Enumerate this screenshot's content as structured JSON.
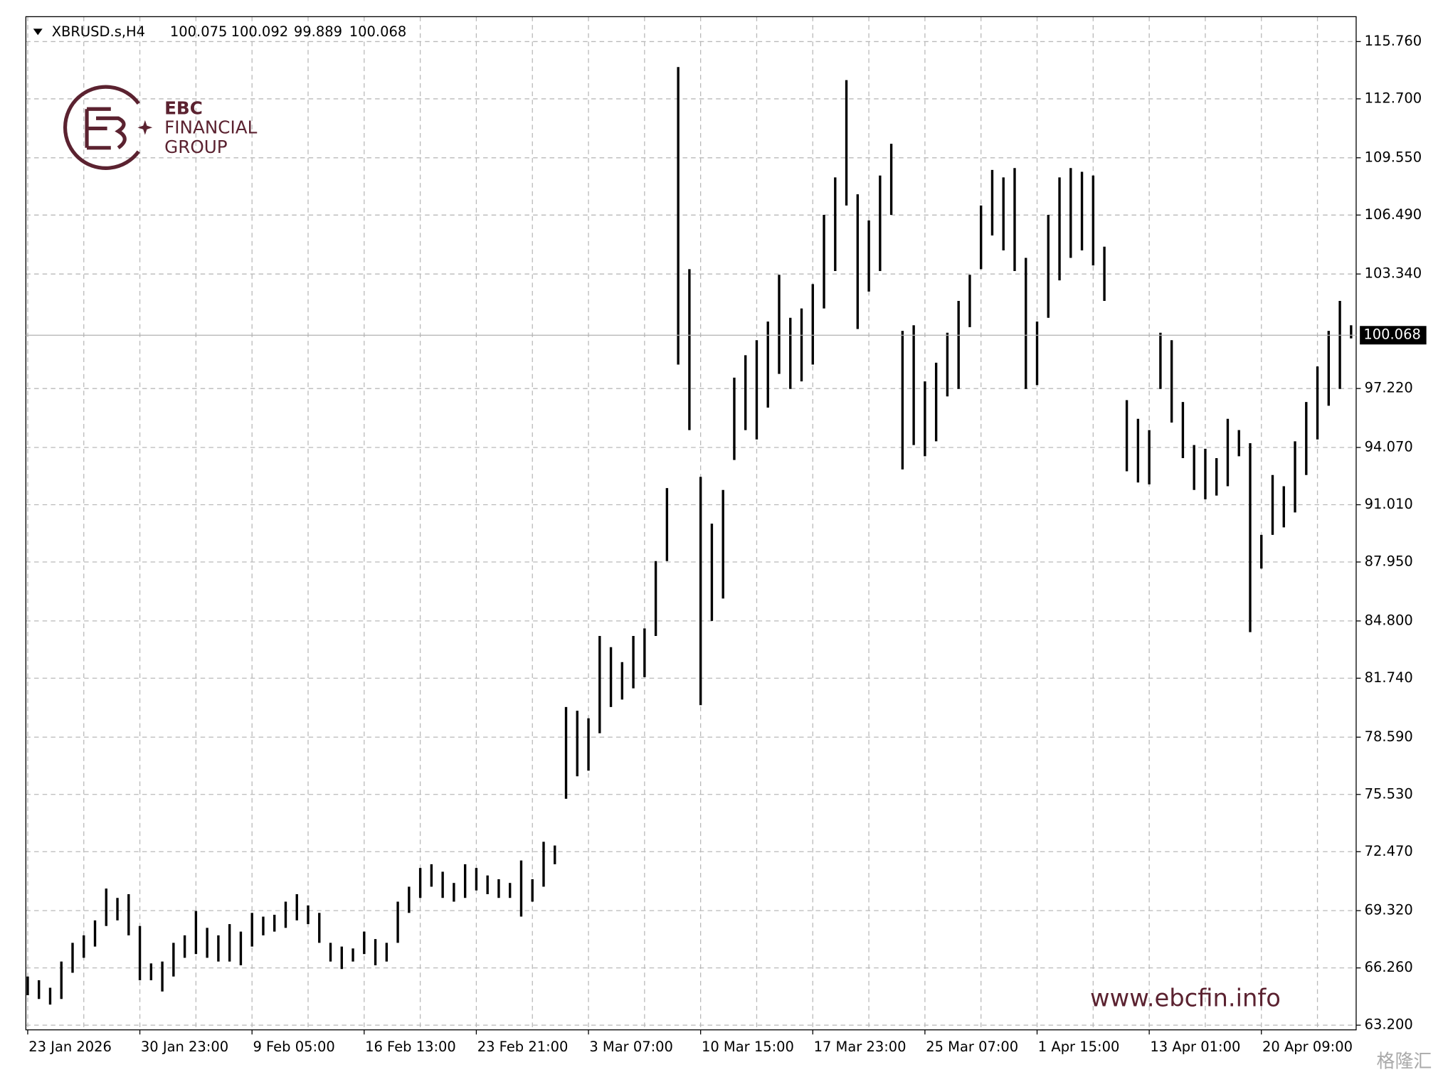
{
  "chart_data": {
    "type": "ohlc",
    "symbol": "XBRUSD.s,H4",
    "ohlc": [
      100.075,
      100.092,
      99.889,
      100.068
    ],
    "current_price": 100.068,
    "brand": [
      "EBC",
      "FINANCIAL",
      "GROUP"
    ],
    "watermark": "www.ebcfin.info",
    "source_mark": "格隆汇",
    "color": "#000000",
    "grid": true,
    "ylim": [
      62.95,
      117.09
    ],
    "yticks": [
      {
        "value": 63.2,
        "label": "63.200"
      },
      {
        "value": 66.26,
        "label": "66.260"
      },
      {
        "value": 69.32,
        "label": "69.320"
      },
      {
        "value": 72.47,
        "label": "72.470"
      },
      {
        "value": 75.53,
        "label": "75.530"
      },
      {
        "value": 78.59,
        "label": "78.590"
      },
      {
        "value": 81.74,
        "label": "81.740"
      },
      {
        "value": 84.8,
        "label": "84.800"
      },
      {
        "value": 87.95,
        "label": "87.950"
      },
      {
        "value": 91.01,
        "label": "91.010"
      },
      {
        "value": 94.07,
        "label": "94.070"
      },
      {
        "value": 97.22,
        "label": "97.220"
      },
      {
        "value": 103.34,
        "label": "103.340"
      },
      {
        "value": 106.49,
        "label": "106.490"
      },
      {
        "value": 109.55,
        "label": "109.550"
      },
      {
        "value": 112.7,
        "label": "112.700"
      },
      {
        "value": 115.76,
        "label": "115.760"
      }
    ],
    "categories": [
      "23 Jan 2026",
      null,
      null,
      null,
      null,
      null,
      null,
      null,
      null,
      null,
      "30 Jan 23:00",
      null,
      null,
      null,
      null,
      null,
      null,
      null,
      null,
      null,
      "9 Feb 05:00",
      null,
      null,
      null,
      null,
      null,
      null,
      null,
      null,
      null,
      "16 Feb 13:00",
      null,
      null,
      null,
      null,
      null,
      null,
      null,
      null,
      null,
      "23 Feb 21:00",
      null,
      null,
      null,
      null,
      null,
      null,
      null,
      null,
      null,
      "3 Mar 07:00",
      null,
      null,
      null,
      null,
      null,
      null,
      null,
      null,
      null,
      "10 Mar 15:00",
      null,
      null,
      null,
      null,
      null,
      null,
      null,
      null,
      null,
      "17 Mar 23:00",
      null,
      null,
      null,
      null,
      null,
      null,
      null,
      null,
      null,
      "25 Mar 07:00",
      null,
      null,
      null,
      null,
      null,
      null,
      null,
      null,
      null,
      "1 Apr 15:00",
      null,
      null,
      null,
      null,
      null,
      null,
      null,
      null,
      null,
      "13 Apr 01:00",
      null,
      null,
      null,
      null,
      null,
      null,
      null,
      null,
      null,
      "20 Apr 09:00",
      null,
      null,
      null,
      null,
      null,
      null,
      null,
      null
    ],
    "high": [
      65.8,
      65.6,
      65.2,
      66.6,
      67.6,
      68.0,
      68.8,
      70.5,
      70.0,
      70.2,
      68.5,
      66.5,
      66.6,
      67.6,
      68.0,
      69.3,
      68.4,
      68.0,
      68.6,
      68.2,
      69.2,
      69.0,
      69.1,
      69.8,
      70.2,
      69.6,
      69.2,
      67.6,
      67.4,
      67.3,
      68.2,
      67.8,
      67.6,
      69.8,
      70.6,
      71.6,
      71.8,
      71.4,
      70.8,
      71.8,
      71.6,
      71.2,
      71.0,
      70.8,
      72.0,
      71.0,
      73.0,
      72.8,
      80.2,
      80.0,
      79.6,
      84.0,
      83.4,
      82.6,
      84.0,
      84.4,
      88.0,
      91.9,
      114.4,
      103.6,
      92.5,
      90.0,
      91.8,
      97.8,
      99.0,
      99.8,
      100.8,
      103.3,
      101.0,
      101.5,
      102.8,
      106.5,
      108.5,
      113.7,
      107.6,
      106.2,
      108.6,
      110.3,
      100.3,
      100.6,
      97.6,
      98.6,
      100.2,
      101.9,
      103.3,
      107.0,
      108.9,
      108.5,
      109.0,
      104.2,
      100.8,
      106.5,
      108.5,
      109.0,
      108.8,
      108.6,
      104.8,
      null,
      96.6,
      95.6,
      95.0,
      100.2,
      99.8,
      96.5,
      94.2,
      94.0,
      93.5,
      95.6,
      95.0,
      94.3,
      89.4,
      92.6,
      92.0,
      94.4,
      96.5,
      98.4,
      100.3,
      101.9,
      100.6
    ],
    "low": [
      64.8,
      64.6,
      64.3,
      64.6,
      66.0,
      66.8,
      67.4,
      68.5,
      68.8,
      68.0,
      65.6,
      65.6,
      65.0,
      65.8,
      66.8,
      67.0,
      66.8,
      66.6,
      66.6,
      66.4,
      67.4,
      68.0,
      68.2,
      68.4,
      68.8,
      68.6,
      67.6,
      66.6,
      66.2,
      66.6,
      67.0,
      66.4,
      66.6,
      67.6,
      69.2,
      70.0,
      70.6,
      70.0,
      69.8,
      70.0,
      70.4,
      70.2,
      70.0,
      70.0,
      69.0,
      69.8,
      70.6,
      71.8,
      75.3,
      76.5,
      76.8,
      78.8,
      80.2,
      80.6,
      81.2,
      81.8,
      84.0,
      88.0,
      98.5,
      95.0,
      80.3,
      84.8,
      86.0,
      93.4,
      95.0,
      94.5,
      96.2,
      98.0,
      97.2,
      97.6,
      98.5,
      101.5,
      103.5,
      107.0,
      100.4,
      102.4,
      103.5,
      106.5,
      92.9,
      94.2,
      93.6,
      94.4,
      96.8,
      97.2,
      100.5,
      103.6,
      105.4,
      104.6,
      103.5,
      97.2,
      97.4,
      101.0,
      103.0,
      104.2,
      104.6,
      103.8,
      101.9,
      null,
      92.8,
      92.2,
      92.1,
      97.2,
      95.4,
      93.5,
      91.8,
      91.3,
      91.5,
      92.0,
      93.6,
      84.2,
      87.6,
      89.4,
      89.8,
      90.6,
      92.6,
      94.5,
      96.3,
      97.2,
      99.9
    ]
  }
}
